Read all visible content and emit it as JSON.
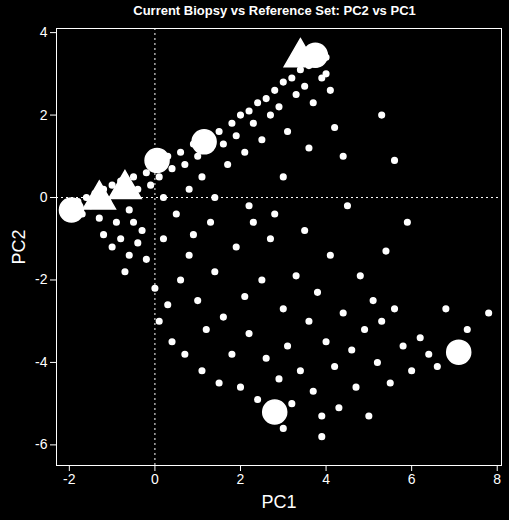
{
  "chart_data": {
    "type": "scatter",
    "title": "Current Biopsy vs Reference Set: PC2 vs PC1",
    "x_label": "PC1",
    "y_label": "PC2",
    "xlim": [
      -2.3,
      8.1
    ],
    "ylim": [
      -6.5,
      4.1
    ],
    "xticks": [
      -2,
      0,
      2,
      4,
      6,
      8
    ],
    "yticks": [
      -6,
      -4,
      -2,
      0,
      2,
      4
    ],
    "vlines": [
      0
    ],
    "hlines": [
      0
    ],
    "series": [
      {
        "color": "#ffffff",
        "marker": "circle",
        "x": [
          -2.0,
          -1.8,
          -1.7,
          -1.6,
          -1.5,
          -1.4,
          -1.3,
          -1.2,
          -1.1,
          -1.0,
          -0.9,
          -0.8,
          -0.7,
          -0.6,
          -0.5,
          -0.4,
          -0.3,
          -0.2,
          -0.1,
          0.0,
          0.1,
          0.2,
          0.3,
          0.4,
          0.5,
          0.6,
          0.7,
          0.8,
          0.9,
          1.0,
          1.1,
          1.2,
          1.3,
          1.4,
          1.5,
          1.6,
          1.7,
          1.8,
          1.9,
          2.0,
          2.1,
          2.2,
          2.3,
          2.4,
          2.5,
          2.6,
          2.7,
          2.8,
          2.9,
          3.0,
          3.1,
          3.2,
          3.3,
          3.4,
          3.5,
          3.6,
          3.7,
          3.8,
          3.9,
          4.0,
          4.1,
          4.0,
          -1.2,
          -1.0,
          -0.8,
          -0.6,
          -0.5,
          -0.7,
          -0.4,
          -0.2,
          0.0,
          0.2,
          0.3,
          0.1,
          0.4,
          0.6,
          0.8,
          0.7,
          1.0,
          1.2,
          1.1,
          1.4,
          1.5,
          1.6,
          1.8,
          1.9,
          2.0,
          2.1,
          2.2,
          2.3,
          2.4,
          2.5,
          2.6,
          2.7,
          2.9,
          3.0,
          3.1,
          3.2,
          3.3,
          3.4,
          3.5,
          3.6,
          3.7,
          3.8,
          3.9,
          4.0,
          4.1,
          4.2,
          4.3,
          4.4,
          4.5,
          4.6,
          4.7,
          4.8,
          4.9,
          5.0,
          5.1,
          5.2,
          5.3,
          5.4,
          5.5,
          5.6,
          5.8,
          5.9,
          6.0,
          6.2,
          6.4,
          6.6,
          6.8,
          7.3,
          7.8,
          5.3,
          5.6,
          4.4,
          3.9,
          3.0,
          2.2,
          3.0,
          3.6,
          4.2,
          2.8,
          1.3,
          0.9
        ],
        "y": [
          -0.3,
          -0.1,
          -0.4,
          0.0,
          -0.2,
          0.1,
          -0.5,
          0.2,
          -0.1,
          0.3,
          -0.6,
          0.4,
          0.1,
          -0.3,
          0.5,
          0.2,
          -0.8,
          0.6,
          0.3,
          0.8,
          0.5,
          0.0,
          1.0,
          0.7,
          -0.4,
          1.1,
          0.8,
          0.2,
          1.3,
          1.0,
          0.5,
          1.5,
          1.2,
          0.0,
          1.6,
          1.3,
          0.8,
          1.8,
          1.5,
          2.0,
          1.1,
          2.1,
          1.8,
          2.3,
          1.4,
          2.4,
          2.0,
          2.6,
          2.2,
          2.8,
          1.6,
          2.9,
          2.5,
          3.1,
          2.7,
          3.2,
          2.3,
          3.3,
          2.9,
          3.0,
          2.6,
          3.4,
          -0.9,
          -1.2,
          -1.0,
          -1.4,
          -0.6,
          -1.8,
          -1.1,
          -1.5,
          -2.2,
          -1.0,
          -2.6,
          -3.0,
          -3.5,
          -2.0,
          -1.4,
          -3.8,
          -2.5,
          -3.2,
          -4.2,
          -1.8,
          -4.5,
          -2.9,
          -3.8,
          -1.2,
          -4.6,
          -2.4,
          -3.3,
          -0.6,
          -4.9,
          -2.0,
          -3.9,
          -1.0,
          -4.4,
          -2.7,
          -3.6,
          -5.0,
          -1.9,
          -4.2,
          -0.8,
          -3.0,
          -4.7,
          -2.3,
          -5.3,
          -3.5,
          -1.4,
          -4.1,
          -5.1,
          -2.8,
          -0.2,
          -3.7,
          -4.6,
          -1.9,
          -3.2,
          -5.3,
          -2.5,
          -4.0,
          -3.0,
          -1.3,
          -4.5,
          -2.7,
          -3.6,
          -0.6,
          -4.2,
          -3.4,
          -3.8,
          -4.1,
          -2.7,
          -3.2,
          -2.8,
          2.0,
          0.9,
          1.0,
          -5.8,
          -5.6,
          -0.2,
          0.5,
          1.2,
          1.7,
          -0.4,
          -0.6,
          -0.9
        ]
      },
      {
        "color": "#ffffff",
        "marker": "big_circle",
        "x": [
          -1.95,
          0.05,
          1.15,
          3.75,
          2.8,
          7.1
        ],
        "y": [
          -0.3,
          0.9,
          1.35,
          3.45,
          -5.2,
          -3.75
        ]
      },
      {
        "color": "#ffffff",
        "marker": "big_triangle",
        "x": [
          -1.3,
          -0.7,
          3.4
        ],
        "y": [
          -0.05,
          0.2,
          3.4
        ]
      }
    ]
  }
}
